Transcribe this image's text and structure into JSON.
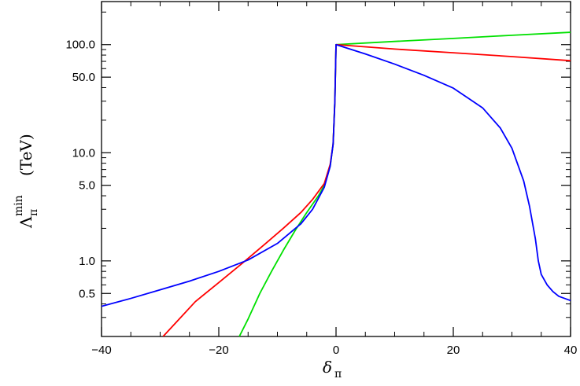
{
  "chart_data": {
    "type": "line",
    "xlabel": "δ",
    "xlabel_subscript": "π",
    "ylabel": "Λ",
    "ylabel_subscript": "π",
    "ylabel_superscript": "min",
    "ylabel_unit": "(TeV)",
    "xlim": [
      -40,
      40
    ],
    "ylim": [
      0.2,
      250
    ],
    "yscale": "log",
    "grid": false,
    "legend": "none",
    "x_ticks": [
      -40,
      -20,
      0,
      20,
      40
    ],
    "x_tick_labels": [
      "−40",
      "−20",
      "0",
      "20",
      "40"
    ],
    "y_ticks": [
      0.5,
      1.0,
      5.0,
      10.0,
      50.0,
      100.0
    ],
    "y_tick_labels": [
      "0.5",
      "1.0",
      "5.0",
      "10.0",
      "50.0",
      "100.0"
    ],
    "series": [
      {
        "color": "#00e000",
        "points": [
          [
            -16.5,
            0.2
          ],
          [
            -15,
            0.29
          ],
          [
            -13,
            0.5
          ],
          [
            -11,
            0.8
          ],
          [
            -9,
            1.25
          ],
          [
            -7,
            1.9
          ],
          [
            -5,
            2.8
          ],
          [
            -3,
            4.0
          ],
          [
            -2,
            5.0
          ],
          [
            -1,
            7.5
          ],
          [
            -0.5,
            12
          ],
          [
            -0.2,
            30
          ],
          [
            0,
            100
          ],
          [
            10,
            107
          ],
          [
            20,
            114
          ],
          [
            30,
            122
          ],
          [
            40,
            130
          ]
        ]
      },
      {
        "color": "#ff0000",
        "points": [
          [
            -29.5,
            0.2
          ],
          [
            -27,
            0.28
          ],
          [
            -24,
            0.42
          ],
          [
            -20,
            0.63
          ],
          [
            -16,
            0.95
          ],
          [
            -12,
            1.45
          ],
          [
            -9,
            2.0
          ],
          [
            -6,
            2.8
          ],
          [
            -4,
            3.7
          ],
          [
            -2,
            5.2
          ],
          [
            -1,
            7.8
          ],
          [
            -0.5,
            12
          ],
          [
            -0.2,
            30
          ],
          [
            0,
            100
          ],
          [
            10,
            91
          ],
          [
            20,
            84
          ],
          [
            30,
            77.5
          ],
          [
            40,
            71
          ]
        ]
      },
      {
        "color": "#0000ff",
        "points": [
          [
            -40,
            0.38
          ],
          [
            -35,
            0.45
          ],
          [
            -30,
            0.54
          ],
          [
            -25,
            0.65
          ],
          [
            -20,
            0.8
          ],
          [
            -15,
            1.02
          ],
          [
            -10,
            1.45
          ],
          [
            -6,
            2.2
          ],
          [
            -4,
            3.0
          ],
          [
            -2,
            4.8
          ],
          [
            -1,
            7.5
          ],
          [
            -0.5,
            12
          ],
          [
            -0.2,
            30
          ],
          [
            0,
            100
          ],
          [
            5,
            82
          ],
          [
            10,
            66
          ],
          [
            15,
            52
          ],
          [
            20,
            39.6
          ],
          [
            25,
            26
          ],
          [
            28,
            17
          ],
          [
            30,
            11
          ],
          [
            32,
            5.5
          ],
          [
            33,
            3.2
          ],
          [
            34,
            1.6
          ],
          [
            34.5,
            1.0
          ],
          [
            35,
            0.75
          ],
          [
            36,
            0.6
          ],
          [
            37,
            0.52
          ],
          [
            38,
            0.47
          ],
          [
            40,
            0.43
          ]
        ]
      }
    ]
  }
}
